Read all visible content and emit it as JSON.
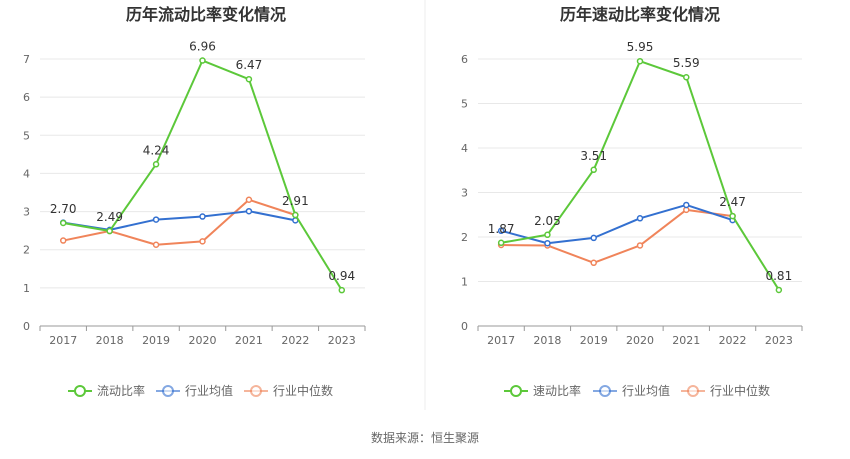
{
  "chart_data": [
    {
      "type": "line",
      "title": "历年流动比率变化情况",
      "categories": [
        "2017",
        "2018",
        "2019",
        "2020",
        "2021",
        "2022",
        "2023"
      ],
      "ylim": [
        0,
        7
      ],
      "yticks": [
        0,
        1,
        2,
        3,
        4,
        5,
        6,
        7
      ],
      "grid": true,
      "legend_position": "bottom",
      "series": [
        {
          "name": "流动比率",
          "color": "#5cc83a",
          "values": [
            2.7,
            2.49,
            4.24,
            6.96,
            6.47,
            2.91,
            0.94
          ],
          "labels": [
            "2.70",
            "2.49",
            "4.24",
            "6.96",
            "6.47",
            "2.91",
            "0.94"
          ]
        },
        {
          "name": "行业均值",
          "color": "#3370d0",
          "values": [
            2.71,
            2.52,
            2.79,
            2.87,
            3.01,
            2.77,
            null
          ]
        },
        {
          "name": "行业中位数",
          "color": "#f0845a",
          "values": [
            2.24,
            2.49,
            2.13,
            2.22,
            3.31,
            2.91,
            null
          ]
        }
      ]
    },
    {
      "type": "line",
      "title": "历年速动比率变化情况",
      "categories": [
        "2017",
        "2018",
        "2019",
        "2020",
        "2021",
        "2022",
        "2023"
      ],
      "ylim": [
        0,
        6
      ],
      "yticks": [
        0,
        1,
        2,
        3,
        4,
        5,
        6
      ],
      "grid": true,
      "legend_position": "bottom",
      "series": [
        {
          "name": "速动比率",
          "color": "#5cc83a",
          "values": [
            1.87,
            2.05,
            3.51,
            5.95,
            5.59,
            2.47,
            0.81
          ],
          "labels": [
            "1.87",
            "2.05",
            "3.51",
            "5.95",
            "5.59",
            "2.47",
            "0.81"
          ]
        },
        {
          "name": "行业均值",
          "color": "#3370d0",
          "values": [
            2.14,
            1.86,
            1.98,
            2.42,
            2.72,
            2.38,
            null
          ]
        },
        {
          "name": "行业中位数",
          "color": "#f0845a",
          "values": [
            1.82,
            1.81,
            1.42,
            1.81,
            2.61,
            2.47,
            null
          ]
        }
      ]
    }
  ],
  "footer": {
    "source": "数据来源：恒生聚源"
  }
}
